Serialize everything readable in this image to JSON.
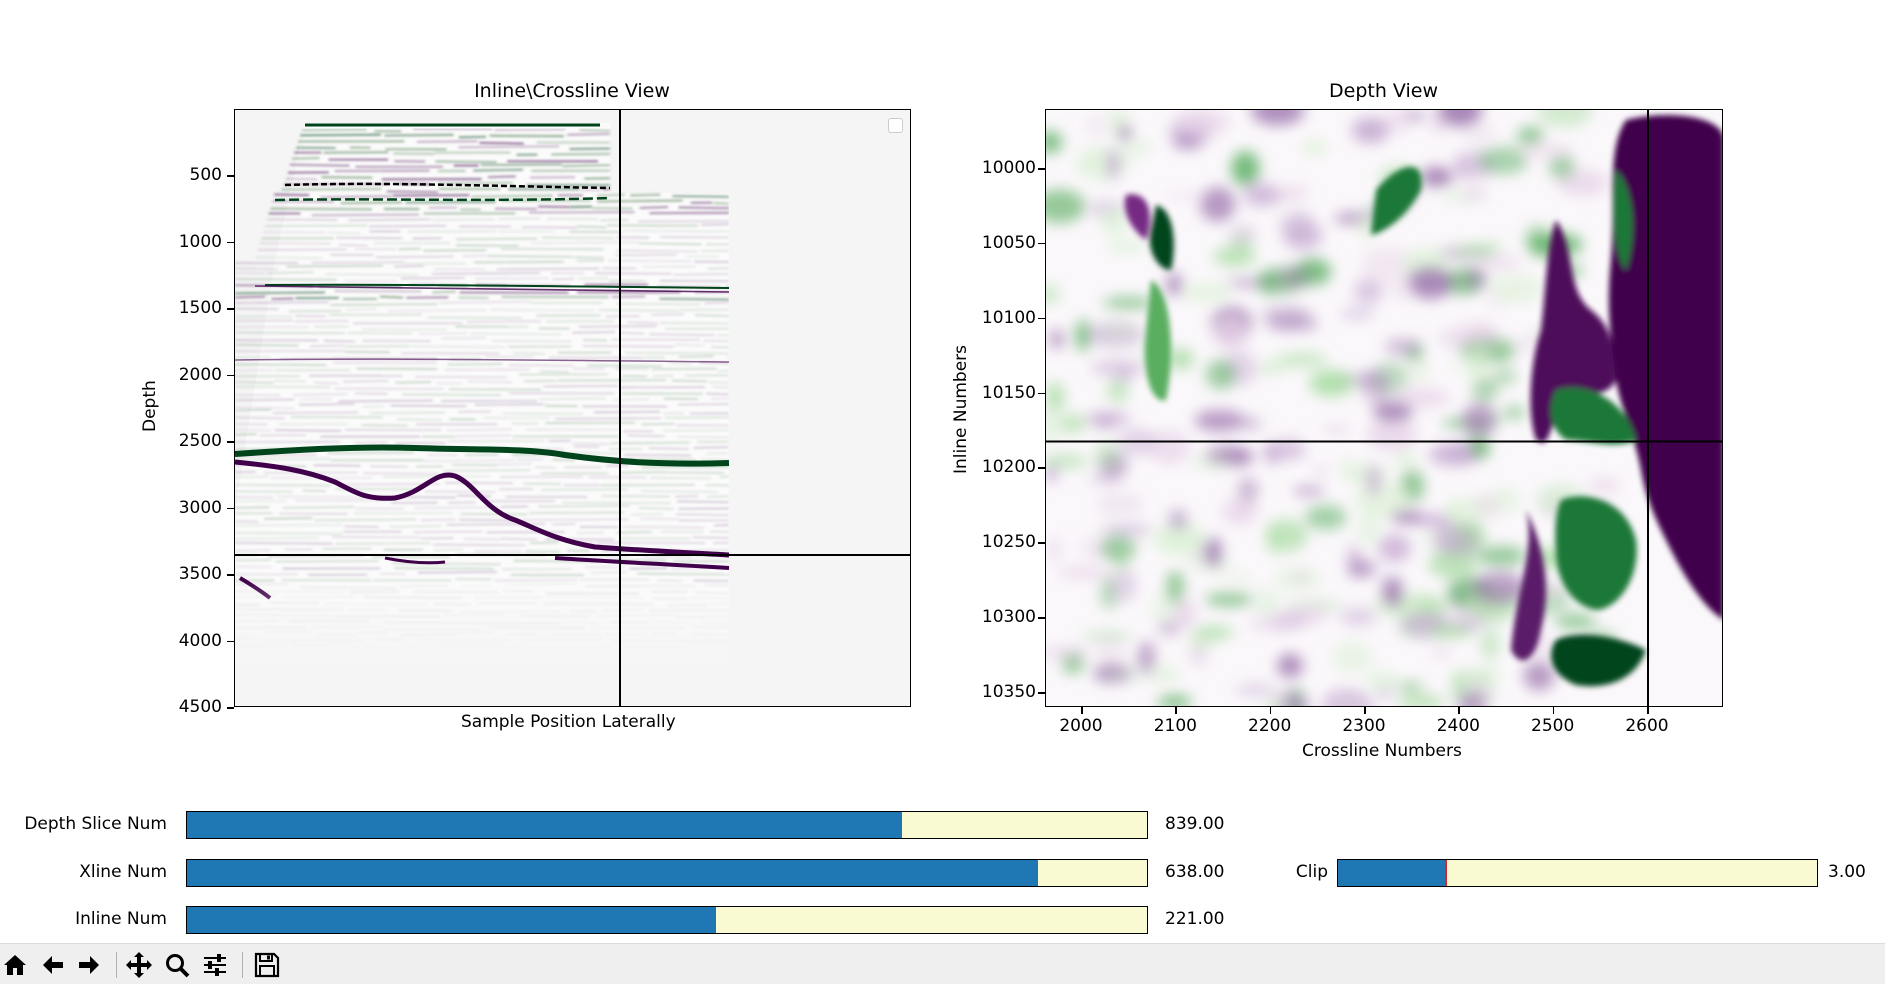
{
  "window": {
    "figure_background": "#ffffff"
  },
  "left_view": {
    "title": "Inline\\Crossline View",
    "xlabel": "Sample Position Laterally",
    "ylabel": "Depth",
    "yticks": [
      "500",
      "1000",
      "1500",
      "2000",
      "2500",
      "3000",
      "3500",
      "4000",
      "4500"
    ],
    "crosshair_depth": 3350,
    "colormap": "PRGn"
  },
  "right_view": {
    "title": "Depth View",
    "xlabel": "Crossline Numbers",
    "ylabel": "Inline Numbers",
    "xticks": [
      "2000",
      "2100",
      "2200",
      "2300",
      "2400",
      "2500",
      "2600"
    ],
    "yticks": [
      "10000",
      "10050",
      "10100",
      "10150",
      "10200",
      "10250",
      "10300",
      "10350"
    ],
    "crosshair_crossline": 2600,
    "crosshair_inline": 10182,
    "colormap": "PRGn"
  },
  "sliders": {
    "depth_slice": {
      "label": "Depth Slice Num",
      "value_text": "839.00",
      "fraction": 0.745
    },
    "xline": {
      "label": "Xline Num",
      "value_text": "638.00",
      "fraction": 0.886
    },
    "inline": {
      "label": "Inline Num",
      "value_text": "221.00",
      "fraction": 0.551
    },
    "clip": {
      "label": "Clip",
      "value_text": "3.00",
      "fraction": 0.225
    }
  },
  "colors": {
    "slider_fill": "#1f77b4",
    "slider_track": "#fafad2",
    "seis_purple": "#40004b",
    "seis_green": "#00441b"
  },
  "toolbar": {
    "buttons": [
      "home-icon",
      "back-arrow-icon",
      "forward-arrow-icon",
      "pan-icon",
      "zoom-icon",
      "configure-subplots-icon",
      "save-icon"
    ]
  }
}
